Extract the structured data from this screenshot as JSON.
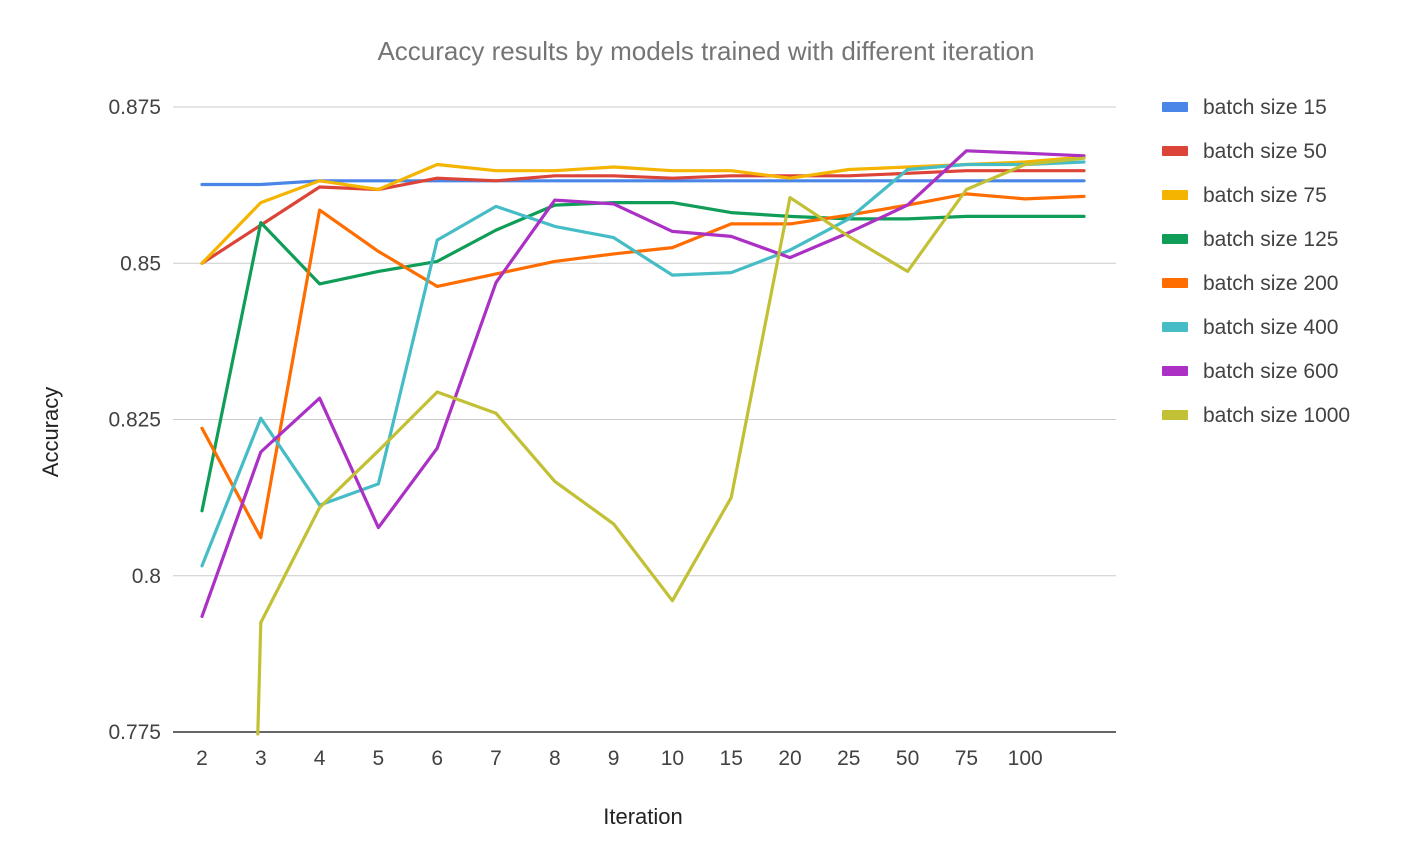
{
  "chart_data": {
    "type": "line",
    "title": "Accuracy results by models trained with different iteration",
    "xlabel": "Iteration",
    "ylabel": "Accuracy",
    "categories": [
      "2",
      "3",
      "4",
      "5",
      "6",
      "7",
      "8",
      "9",
      "10",
      "15",
      "20",
      "25",
      "50",
      "75",
      "100",
      ""
    ],
    "y_ticks": [
      "0.775",
      "0.8",
      "0.825",
      "0.85",
      "0.875"
    ],
    "y_tick_values": [
      0.775,
      0.8,
      0.825,
      0.85,
      0.875
    ],
    "ylim": [
      0.775,
      0.875
    ],
    "grid": true,
    "legend_position": "right",
    "series": [
      {
        "name": "batch size 15",
        "color": "#4a86e8",
        "values": [
          0.8626,
          0.8626,
          0.8632,
          0.8632,
          0.8632,
          0.8632,
          0.8632,
          0.8632,
          0.8632,
          0.8632,
          0.8632,
          0.8632,
          0.8632,
          0.8632,
          0.8632,
          0.8632
        ]
      },
      {
        "name": "batch size 50",
        "color": "#db4437",
        "values": [
          0.85,
          0.8561,
          0.8622,
          0.8618,
          0.8636,
          0.8632,
          0.864,
          0.864,
          0.8636,
          0.864,
          0.864,
          0.864,
          0.8644,
          0.8648,
          0.8648,
          0.8648
        ]
      },
      {
        "name": "batch size 75",
        "color": "#f4b400",
        "values": [
          0.85,
          0.8597,
          0.8632,
          0.8618,
          0.8658,
          0.8648,
          0.8648,
          0.8654,
          0.8648,
          0.8648,
          0.8636,
          0.865,
          0.8654,
          0.8658,
          0.8662,
          0.867
        ]
      },
      {
        "name": "batch size 125",
        "color": "#0f9d58",
        "values": [
          0.8104,
          0.8565,
          0.8467,
          0.8487,
          0.8503,
          0.8553,
          0.8593,
          0.8597,
          0.8597,
          0.8581,
          0.8575,
          0.8571,
          0.8571,
          0.8575,
          0.8575,
          0.8575
        ]
      },
      {
        "name": "batch size 200",
        "color": "#ff6d00",
        "values": [
          0.8236,
          0.8061,
          0.8585,
          0.8519,
          0.8463,
          0.8483,
          0.8503,
          0.8515,
          0.8525,
          0.8563,
          0.8563,
          0.8577,
          0.8593,
          0.8611,
          0.8603,
          0.8607
        ]
      },
      {
        "name": "batch size 400",
        "color": "#46bdc6",
        "values": [
          0.8016,
          0.8252,
          0.8113,
          0.8147,
          0.8537,
          0.8591,
          0.8559,
          0.8541,
          0.8481,
          0.8485,
          0.8521,
          0.8571,
          0.865,
          0.8658,
          0.8658,
          0.8662
        ]
      },
      {
        "name": "batch size 600",
        "color": "#ab30c4",
        "values": [
          0.7935,
          0.8198,
          0.8284,
          0.8077,
          0.8204,
          0.8469,
          0.8601,
          0.8595,
          0.8551,
          0.8543,
          0.8509,
          0.8549,
          0.8593,
          0.868,
          0.8676,
          0.8672
        ]
      },
      {
        "name": "batch size 1000",
        "color": "#c2c034",
        "values": [
          null,
          0.7925,
          0.8109,
          0.82,
          0.8294,
          0.826,
          0.8151,
          0.8083,
          0.796,
          0.8125,
          0.8605,
          0.8543,
          0.8487,
          0.8618,
          0.8658,
          0.8668
        ]
      }
    ]
  }
}
